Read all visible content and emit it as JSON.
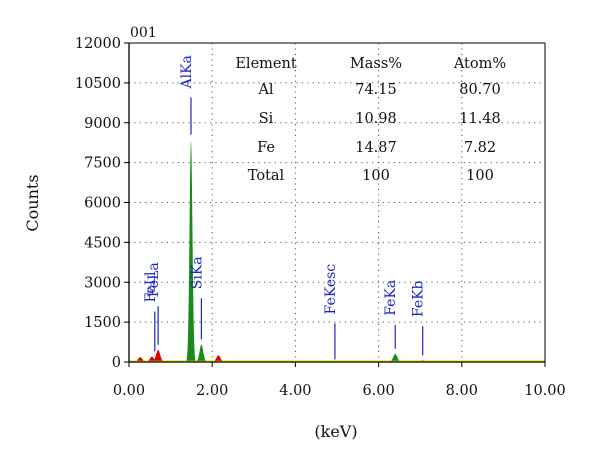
{
  "chart_data": {
    "type": "area",
    "sample_label": "001",
    "xlabel": "(keV)",
    "ylabel": "Counts",
    "xlim": [
      0,
      10
    ],
    "ylim": [
      0,
      12000
    ],
    "grid": true,
    "x_ticks": [
      "0.00",
      "2.00",
      "4.00",
      "6.00",
      "8.00",
      "10.00"
    ],
    "y_ticks": [
      "0",
      "1500",
      "3000",
      "4500",
      "6000",
      "7500",
      "9000",
      "10500",
      "12000"
    ],
    "colors": {
      "main_peaks": "#1a8a1a",
      "minor_peaks": "#e00000",
      "baseline": "#e8e000",
      "labels": "#1a23c8"
    },
    "spectrum_peaks": [
      {
        "x": 0.27,
        "y": 180,
        "color": "red"
      },
      {
        "x": 0.55,
        "y": 200,
        "color": "red"
      },
      {
        "x": 0.7,
        "y": 450,
        "color": "red"
      },
      {
        "x": 1.49,
        "y": 8300,
        "color": "green"
      },
      {
        "x": 1.74,
        "y": 650,
        "color": "green"
      },
      {
        "x": 2.15,
        "y": 250,
        "color": "red"
      },
      {
        "x": 6.4,
        "y": 300,
        "color": "green"
      },
      {
        "x": 7.06,
        "y": 60,
        "color": "red"
      }
    ],
    "peak_labels": [
      {
        "name": "FeLl",
        "x": 0.62,
        "y_top": 2050,
        "y_bottom": 400
      },
      {
        "name": "FeLa",
        "x": 0.7,
        "y_top": 2250,
        "y_bottom": 650
      },
      {
        "name": "AlKa",
        "x": 1.49,
        "y_top": 10100,
        "y_bottom": 8550
      },
      {
        "name": "SiKa",
        "x": 1.74,
        "y_top": 2550,
        "y_bottom": 850
      },
      {
        "name": "FeKesc",
        "x": 4.95,
        "y_top": 1600,
        "y_bottom": 100
      },
      {
        "name": "FeKa",
        "x": 6.4,
        "y_top": 1550,
        "y_bottom": 500
      },
      {
        "name": "FeKb",
        "x": 7.06,
        "y_top": 1500,
        "y_bottom": 250
      }
    ],
    "table": {
      "headers": [
        "Element",
        "Mass%",
        "Atom%"
      ],
      "rows": [
        [
          "Al",
          "74.15",
          "80.70"
        ],
        [
          "Si",
          "10.98",
          "11.48"
        ],
        [
          "Fe",
          "14.87",
          "7.82"
        ],
        [
          "Total",
          "100",
          "100"
        ]
      ]
    }
  }
}
